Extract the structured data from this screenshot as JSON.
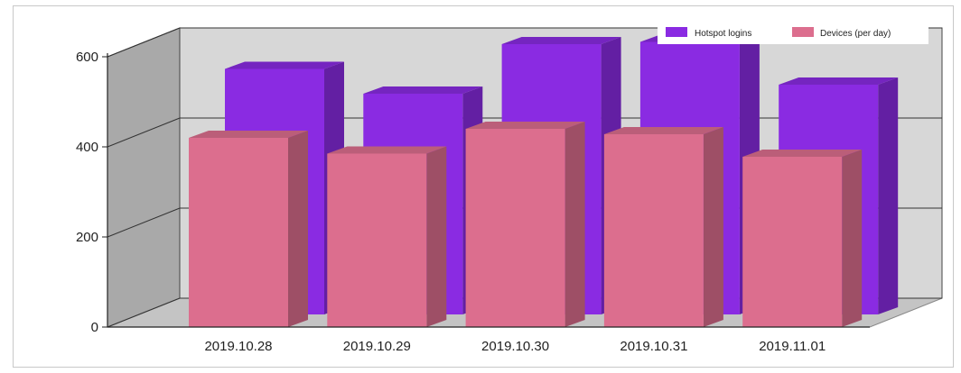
{
  "chart_data": {
    "type": "bar",
    "style": "3d-clustered",
    "categories": [
      "2019.10.28",
      "2019.10.29",
      "2019.10.30",
      "2019.10.31",
      "2019.11.01"
    ],
    "series": [
      {
        "name": "Hotspot logins",
        "values": [
          545,
          490,
          600,
          605,
          510
        ],
        "color": "#8a2be2"
      },
      {
        "name": "Devices (per day)",
        "values": [
          420,
          385,
          440,
          428,
          378
        ],
        "color": "#dc6e8e"
      }
    ],
    "yticks": [
      "0",
      "200",
      "400",
      "600"
    ],
    "ylim": [
      0,
      600
    ],
    "grid": true,
    "legend": "top-right"
  }
}
